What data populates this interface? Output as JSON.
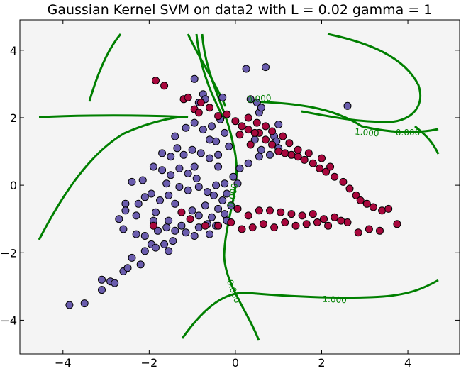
{
  "chart_data": {
    "type": "scatter",
    "title": "Gaussian Kernel SVM on data2 with L = 0.02 gamma = 1",
    "xlabel": "",
    "ylabel": "",
    "xlim": [
      -5.0,
      5.2
    ],
    "ylim": [
      -5.0,
      4.9
    ],
    "xticks": [
      -4,
      -2,
      0,
      2,
      4
    ],
    "yticks": [
      -4,
      -2,
      0,
      2,
      4
    ],
    "xtick_labels": [
      "−4",
      "−2",
      "0",
      "2",
      "4"
    ],
    "ytick_labels": [
      "−4",
      "−2",
      "0",
      "2",
      "4"
    ],
    "grid": false,
    "background": "#f4f4f4",
    "colors": {
      "class_a": "#6a5cad",
      "class_b": "#a8083d",
      "contour": "#007f00"
    },
    "series": [
      {
        "class": "a",
        "points": [
          [
            -3.85,
            -3.55
          ],
          [
            -3.5,
            -3.5
          ],
          [
            -3.1,
            -3.1
          ],
          [
            -3.1,
            -2.8
          ],
          [
            -2.9,
            -2.85
          ],
          [
            -2.8,
            -2.9
          ],
          [
            -2.6,
            -2.55
          ],
          [
            -2.5,
            -2.45
          ],
          [
            -2.4,
            -2.15
          ],
          [
            -2.2,
            -2.35
          ],
          [
            -2.1,
            -1.95
          ],
          [
            -1.95,
            -1.75
          ],
          [
            -1.85,
            -1.85
          ],
          [
            -1.65,
            -1.75
          ],
          [
            -1.55,
            -1.95
          ],
          [
            -1.45,
            -1.65
          ],
          [
            -2.6,
            -1.3
          ],
          [
            -2.3,
            -1.45
          ],
          [
            -2.1,
            -1.5
          ],
          [
            -1.8,
            -1.35
          ],
          [
            -1.6,
            -1.25
          ],
          [
            -1.4,
            -1.35
          ],
          [
            -1.25,
            -1.2
          ],
          [
            -1.15,
            -1.4
          ],
          [
            -2.55,
            -0.55
          ],
          [
            -2.55,
            -0.75
          ],
          [
            -2.25,
            -0.55
          ],
          [
            -2.1,
            -0.35
          ],
          [
            -1.85,
            -0.8
          ],
          [
            -1.75,
            -0.45
          ],
          [
            -1.55,
            -0.3
          ],
          [
            -1.4,
            -0.55
          ],
          [
            -2.4,
            0.1
          ],
          [
            -2.15,
            0.15
          ],
          [
            -1.9,
            0.55
          ],
          [
            -1.7,
            0.45
          ],
          [
            -1.5,
            0.3
          ],
          [
            -1.3,
            0.5
          ],
          [
            -1.1,
            0.35
          ],
          [
            -0.9,
            0.2
          ],
          [
            -1.7,
            0.95
          ],
          [
            -1.5,
            0.85
          ],
          [
            -1.35,
            1.1
          ],
          [
            -1.2,
            0.9
          ],
          [
            -1.0,
            1.05
          ],
          [
            -0.8,
            0.95
          ],
          [
            -0.6,
            0.8
          ],
          [
            -0.4,
            0.9
          ],
          [
            -1.4,
            1.45
          ],
          [
            -1.15,
            1.7
          ],
          [
            -0.95,
            1.85
          ],
          [
            -0.75,
            1.65
          ],
          [
            -0.55,
            1.75
          ],
          [
            -0.35,
            1.95
          ],
          [
            -0.25,
            1.55
          ],
          [
            -0.45,
            1.3
          ],
          [
            -1.3,
            -0.05
          ],
          [
            -1.1,
            -0.15
          ],
          [
            -0.85,
            -0.05
          ],
          [
            -0.65,
            -0.2
          ],
          [
            -0.45,
            0.0
          ],
          [
            -0.25,
            0.05
          ],
          [
            -0.05,
            0.25
          ],
          [
            0.05,
            0.05
          ],
          [
            -1.0,
            -0.75
          ],
          [
            -0.85,
            -0.9
          ],
          [
            -0.7,
            -0.6
          ],
          [
            -0.55,
            -0.95
          ],
          [
            -0.4,
            -0.7
          ],
          [
            -0.25,
            -0.85
          ],
          [
            -0.1,
            -0.6
          ],
          [
            -0.2,
            -1.05
          ],
          [
            -0.85,
            -1.25
          ],
          [
            -0.65,
            -1.15
          ],
          [
            -0.45,
            -1.2
          ],
          [
            -0.3,
            -0.45
          ],
          [
            -0.5,
            -0.3
          ],
          [
            -0.2,
            -0.25
          ],
          [
            0.1,
            0.5
          ],
          [
            0.3,
            0.65
          ],
          [
            0.55,
            0.85
          ],
          [
            0.6,
            1.05
          ],
          [
            0.8,
            0.9
          ],
          [
            1.0,
            1.1
          ],
          [
            0.9,
            1.45
          ],
          [
            1.0,
            1.8
          ],
          [
            0.95,
            1.3
          ],
          [
            0.45,
            1.35
          ],
          [
            -0.85,
            2.45
          ],
          [
            -0.75,
            2.7
          ],
          [
            -0.7,
            2.55
          ],
          [
            -0.95,
            3.15
          ],
          [
            -0.3,
            2.6
          ],
          [
            0.25,
            3.45
          ],
          [
            0.35,
            2.55
          ],
          [
            0.5,
            2.45
          ],
          [
            0.55,
            2.15
          ],
          [
            0.6,
            2.3
          ],
          [
            0.7,
            3.5
          ],
          [
            2.6,
            2.35
          ],
          [
            -0.4,
            0.55
          ],
          [
            -0.15,
            1.15
          ],
          [
            -0.6,
            1.35
          ],
          [
            -0.95,
            0.55
          ],
          [
            -1.6,
            0.05
          ],
          [
            -1.95,
            -0.25
          ],
          [
            -2.7,
            -1.0
          ],
          [
            -2.3,
            -0.9
          ],
          [
            -1.9,
            -1.05
          ],
          [
            -1.55,
            -1.05
          ],
          [
            -0.95,
            -1.5
          ],
          [
            -0.6,
            -1.45
          ]
        ]
      },
      {
        "class": "b",
        "points": [
          [
            -1.85,
            3.1
          ],
          [
            -1.65,
            2.95
          ],
          [
            -1.2,
            2.55
          ],
          [
            -1.1,
            2.6
          ],
          [
            -0.95,
            2.25
          ],
          [
            -0.85,
            2.15
          ],
          [
            -0.8,
            2.45
          ],
          [
            -0.6,
            2.3
          ],
          [
            -0.4,
            2.05
          ],
          [
            -0.2,
            2.1
          ],
          [
            0.0,
            1.9
          ],
          [
            0.15,
            1.75
          ],
          [
            0.3,
            1.65
          ],
          [
            0.55,
            1.55
          ],
          [
            0.7,
            1.35
          ],
          [
            0.85,
            1.2
          ],
          [
            1.0,
            1.0
          ],
          [
            1.15,
            0.95
          ],
          [
            1.3,
            0.9
          ],
          [
            1.45,
            0.85
          ],
          [
            1.6,
            0.75
          ],
          [
            1.8,
            0.65
          ],
          [
            1.95,
            0.5
          ],
          [
            2.1,
            0.4
          ],
          [
            2.3,
            0.25
          ],
          [
            2.5,
            0.1
          ],
          [
            2.65,
            -0.1
          ],
          [
            2.8,
            -0.3
          ],
          [
            2.9,
            -0.45
          ],
          [
            3.05,
            -0.55
          ],
          [
            3.2,
            -0.65
          ],
          [
            3.4,
            -0.75
          ],
          [
            3.55,
            -0.7
          ],
          [
            3.75,
            -1.15
          ],
          [
            3.35,
            -1.35
          ],
          [
            3.1,
            -1.3
          ],
          [
            2.85,
            -1.4
          ],
          [
            2.6,
            -1.1
          ],
          [
            2.3,
            -0.95
          ],
          [
            2.05,
            -1.0
          ],
          [
            1.8,
            -0.85
          ],
          [
            1.55,
            -0.9
          ],
          [
            1.3,
            -0.85
          ],
          [
            1.05,
            -0.8
          ],
          [
            0.8,
            -0.75
          ],
          [
            0.55,
            -0.75
          ],
          [
            0.3,
            -0.9
          ],
          [
            0.05,
            -0.7
          ],
          [
            0.15,
            -1.3
          ],
          [
            0.4,
            -1.25
          ],
          [
            0.65,
            -1.15
          ],
          [
            0.9,
            -1.25
          ],
          [
            1.15,
            -1.1
          ],
          [
            1.4,
            -1.2
          ],
          [
            1.65,
            -1.15
          ],
          [
            1.9,
            -1.1
          ],
          [
            2.15,
            -1.2
          ],
          [
            2.45,
            -1.05
          ],
          [
            -0.1,
            -1.1
          ],
          [
            -0.4,
            -1.2
          ],
          [
            -0.7,
            -1.2
          ],
          [
            -1.05,
            -1.0
          ],
          [
            -1.25,
            -0.8
          ],
          [
            -1.9,
            -1.2
          ],
          [
            0.3,
            2.0
          ],
          [
            0.5,
            1.85
          ],
          [
            0.7,
            1.75
          ],
          [
            0.85,
            1.6
          ],
          [
            1.1,
            1.45
          ],
          [
            1.25,
            1.25
          ],
          [
            1.45,
            1.05
          ],
          [
            1.7,
            0.95
          ],
          [
            2.0,
            0.8
          ],
          [
            2.2,
            0.55
          ],
          [
            0.1,
            1.5
          ],
          [
            0.35,
            1.2
          ],
          [
            0.45,
            1.55
          ]
        ]
      }
    ],
    "contour_labels": [
      {
        "text": "0.000",
        "x": 0.55,
        "y": 2.55,
        "rotate": -5
      },
      {
        "text": "1.000",
        "x": 3.05,
        "y": 1.55,
        "rotate": 5
      },
      {
        "text": "0.000",
        "x": 4.0,
        "y": 1.55,
        "rotate": 0
      },
      {
        "text": "0.000",
        "x": -0.05,
        "y": -0.3,
        "rotate": -80
      },
      {
        "text": "0.000",
        "x": -0.05,
        "y": -3.15,
        "rotate": 70
      },
      {
        "text": "1.000",
        "x": 2.3,
        "y": -3.4,
        "rotate": 3
      }
    ]
  }
}
